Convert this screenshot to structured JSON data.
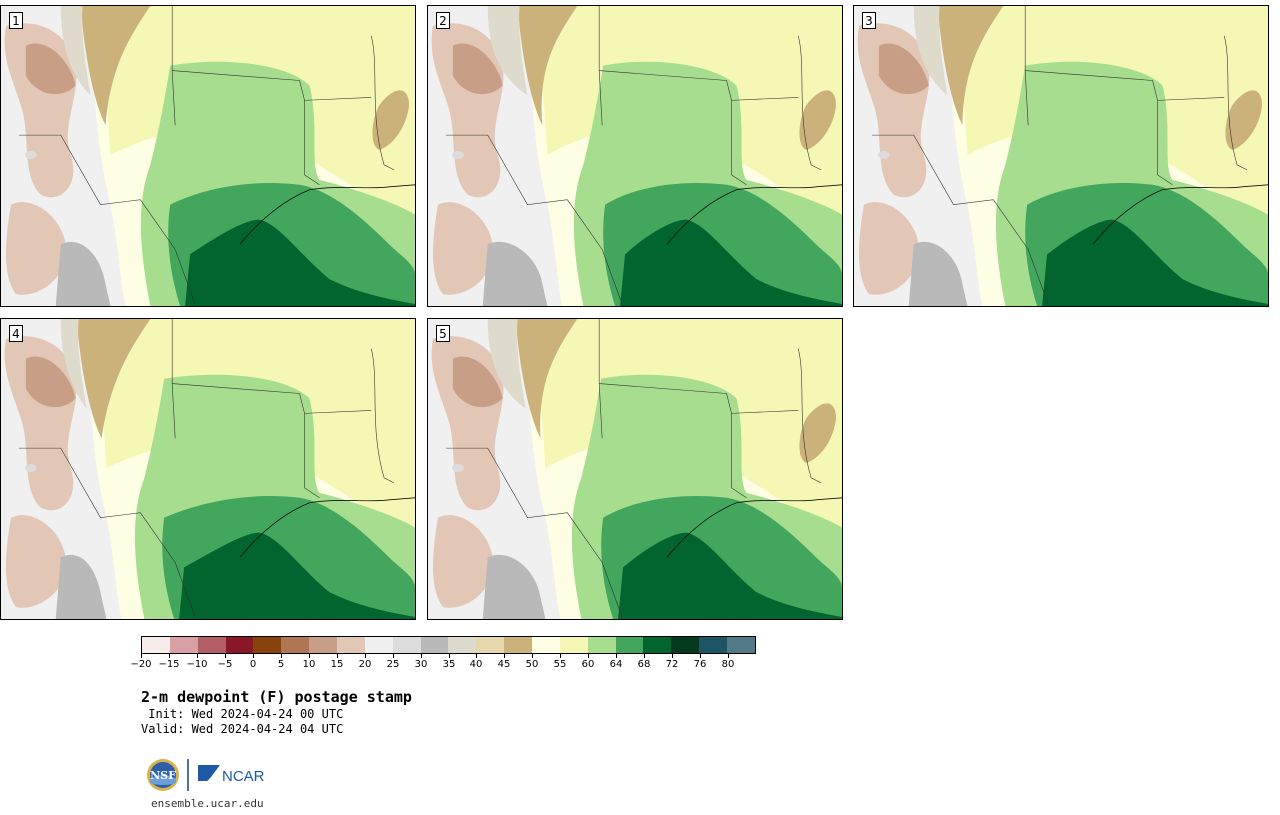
{
  "panels": [
    {
      "label": "1"
    },
    {
      "label": "2"
    },
    {
      "label": "3"
    },
    {
      "label": "4"
    },
    {
      "label": "5"
    }
  ],
  "legend": {
    "ticks": [
      "−20",
      "−15",
      "−10",
      "−5",
      "0",
      "5",
      "10",
      "15",
      "20",
      "25",
      "30",
      "35",
      "40",
      "45",
      "50",
      "55",
      "60",
      "64",
      "68",
      "72",
      "76",
      "80"
    ],
    "colors": [
      "#f6ecec",
      "#d8a0a3",
      "#b35d65",
      "#8a1727",
      "#8a420c",
      "#b07552",
      "#c89e86",
      "#e2c7b6",
      "#f0f0f0",
      "#dcdcdc",
      "#b9b9b9",
      "#dedacc",
      "#e7d7ad",
      "#cbb27a",
      "#fefee4",
      "#f5f7b4",
      "#a7dd8f",
      "#42a65c",
      "#02652f",
      "#033a1e",
      "#1d5564",
      "#507b86"
    ]
  },
  "title": "2-m dewpoint (F) postage stamp",
  "init_line": " Init: Wed 2024-04-24 00 UTC",
  "valid_line": "Valid: Wed 2024-04-24 04 UTC",
  "logos": {
    "nsf": "NSF",
    "ncar": "NCAR"
  },
  "website": "ensemble.ucar.edu"
}
